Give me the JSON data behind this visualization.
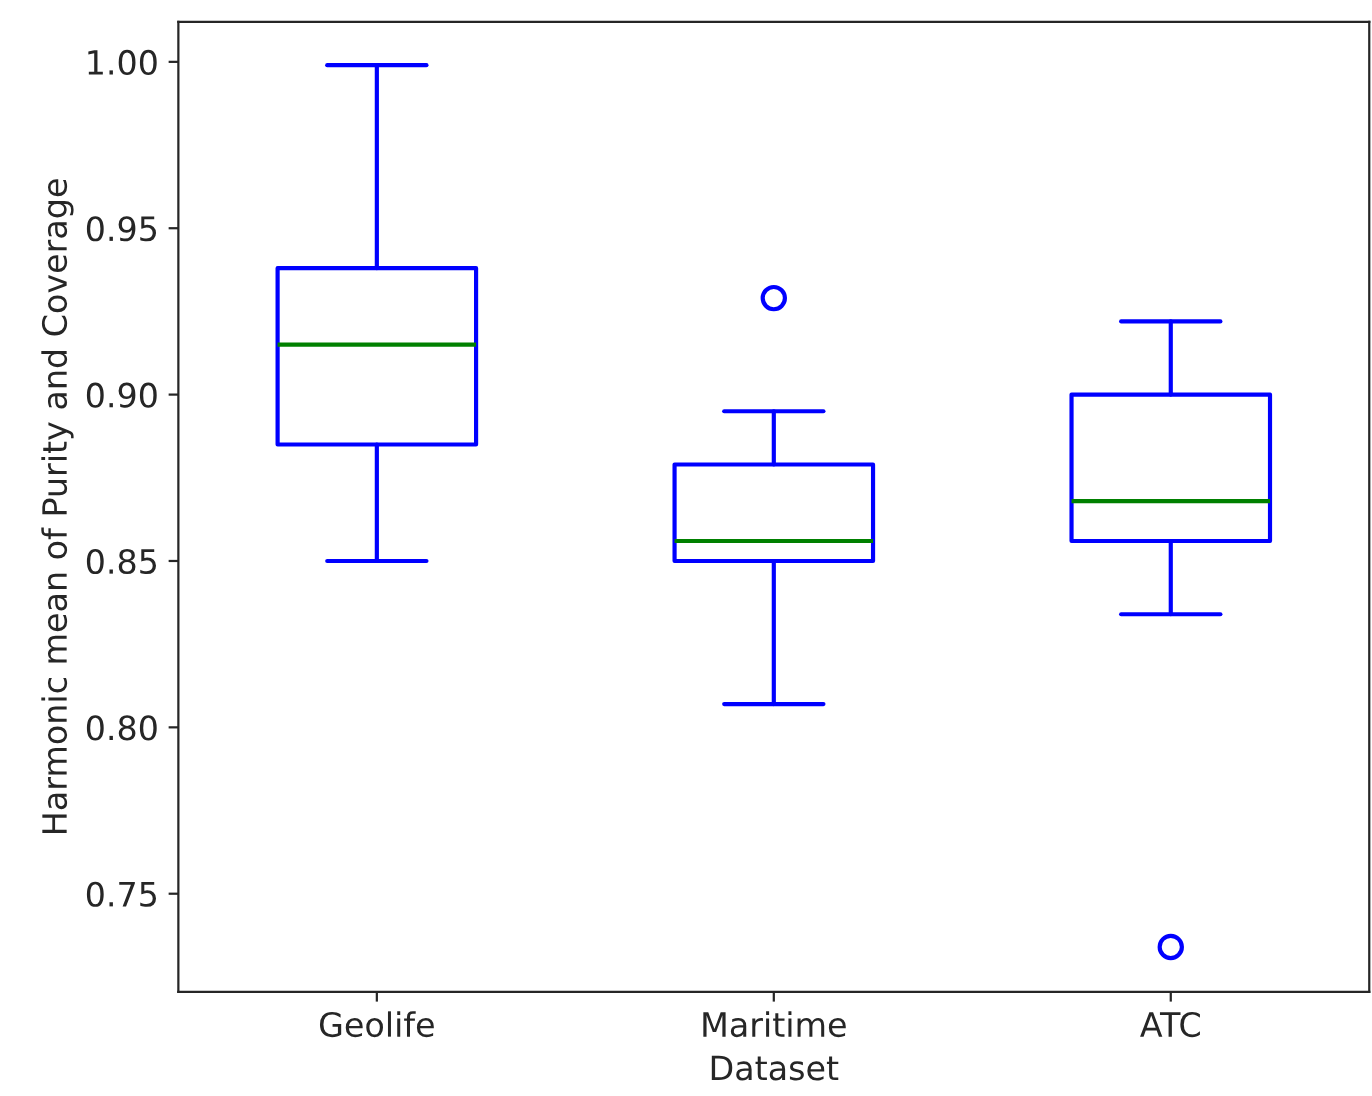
{
  "chart_data": {
    "type": "box",
    "xlabel": "Dataset",
    "ylabel": "Harmonic mean of Purity and Coverage",
    "categories": [
      "Geolife",
      "Maritime",
      "ATC"
    ],
    "boxes": [
      {
        "low": 0.85,
        "q1": 0.885,
        "median": 0.915,
        "q3": 0.938,
        "high": 0.999
      },
      {
        "low": 0.807,
        "q1": 0.85,
        "median": 0.856,
        "q3": 0.879,
        "high": 0.895,
        "outliers": [
          0.929
        ]
      },
      {
        "low": 0.834,
        "q1": 0.856,
        "median": 0.868,
        "q3": 0.9,
        "high": 0.922,
        "outliers": [
          0.734
        ]
      }
    ],
    "color": "#0000ff",
    "ylim": [
      0.7205,
      1.012
    ],
    "yticks": [
      {
        "value": 0.75,
        "label": "0.75"
      },
      {
        "value": 0.8,
        "label": "0.80"
      },
      {
        "value": 0.85,
        "label": "0.85"
      },
      {
        "value": 0.9,
        "label": "0.90"
      },
      {
        "value": 0.95,
        "label": "0.95"
      },
      {
        "value": 1.0,
        "label": "1.00"
      }
    ],
    "grid": false,
    "legend": false
  }
}
